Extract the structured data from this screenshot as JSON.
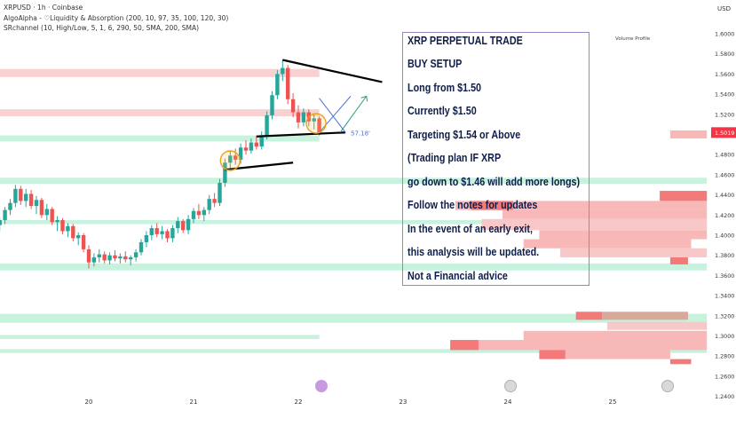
{
  "header": {
    "symbol_line": "XRPUSD · 1h · Coinbase",
    "indicator_1": "AlgoAlpha - ♡Liquidity & Absorption (200, 10, 97, 35, 100, 120, 30)",
    "indicator_2": "SRchannel (10, High/Low, 5, 1, 6, 290, 50, SMA, 200, SMA)",
    "currency": "USD",
    "volume_profile_label": "Volume Profile"
  },
  "note": {
    "lines": [
      "XRP PERPETUAL TRADE",
      "BUY SETUP",
      "Long from $1.50",
      "Currently $1.50",
      "Targeting $1.54 or Above",
      "(Trading plan IF XRP",
      "go down to $1.46 will add more longs)",
      "Follow the notes for updates",
      "In the event of an early exit,",
      "this analysis will be updated.",
      "Not a Financial advice"
    ]
  },
  "chart_data": {
    "type": "candlestick",
    "symbol": "XRPUSD",
    "timeframe": "1h",
    "exchange": "Coinbase",
    "x_tick_labels": [
      "20",
      "21",
      "22",
      "23",
      "24",
      "25"
    ],
    "y_tick_labels": [
      "1.6000",
      "1.5800",
      "1.5600",
      "1.5400",
      "1.5200",
      "1.5000",
      "1.4800",
      "1.4600",
      "1.4400",
      "1.4200",
      "1.4000",
      "1.3800",
      "1.3600",
      "1.3400",
      "1.3200",
      "1.3000",
      "1.2800",
      "1.2600",
      "1.2400"
    ],
    "ylim": [
      1.234,
      1.632
    ],
    "last_price": "1.5019",
    "annotation_label": "57.18'",
    "colors": {
      "up": "#26a69a",
      "down": "#ef5350",
      "last_price": "#f23645",
      "trendline": "#000000",
      "zone_red": "#f8c9c9",
      "zone_green": "#bdf0d8",
      "note_border": "#9a86c4"
    },
    "candles": [
      {
        "day": 19.05,
        "o": 1.413,
        "h": 1.421,
        "l": 1.405,
        "c": 1.417
      },
      {
        "day": 19.1,
        "o": 1.417,
        "h": 1.422,
        "l": 1.408,
        "c": 1.41
      },
      {
        "day": 19.15,
        "o": 1.41,
        "h": 1.418,
        "l": 1.404,
        "c": 1.415
      },
      {
        "day": 19.2,
        "o": 1.415,
        "h": 1.428,
        "l": 1.411,
        "c": 1.425
      },
      {
        "day": 19.25,
        "o": 1.425,
        "h": 1.436,
        "l": 1.42,
        "c": 1.432
      },
      {
        "day": 19.3,
        "o": 1.432,
        "h": 1.45,
        "l": 1.428,
        "c": 1.446
      },
      {
        "day": 19.35,
        "o": 1.446,
        "h": 1.449,
        "l": 1.43,
        "c": 1.434
      },
      {
        "day": 19.4,
        "o": 1.434,
        "h": 1.446,
        "l": 1.428,
        "c": 1.441
      },
      {
        "day": 19.45,
        "o": 1.441,
        "h": 1.445,
        "l": 1.426,
        "c": 1.429
      },
      {
        "day": 19.5,
        "o": 1.429,
        "h": 1.439,
        "l": 1.421,
        "c": 1.435
      },
      {
        "day": 19.55,
        "o": 1.435,
        "h": 1.437,
        "l": 1.417,
        "c": 1.42
      },
      {
        "day": 19.6,
        "o": 1.42,
        "h": 1.431,
        "l": 1.415,
        "c": 1.426
      },
      {
        "day": 19.65,
        "o": 1.426,
        "h": 1.428,
        "l": 1.41,
        "c": 1.413
      },
      {
        "day": 19.7,
        "o": 1.413,
        "h": 1.419,
        "l": 1.404,
        "c": 1.415
      },
      {
        "day": 19.75,
        "o": 1.415,
        "h": 1.417,
        "l": 1.401,
        "c": 1.404
      },
      {
        "day": 19.8,
        "o": 1.404,
        "h": 1.412,
        "l": 1.398,
        "c": 1.409
      },
      {
        "day": 19.85,
        "o": 1.409,
        "h": 1.411,
        "l": 1.394,
        "c": 1.397
      },
      {
        "day": 19.9,
        "o": 1.397,
        "h": 1.403,
        "l": 1.39,
        "c": 1.4
      },
      {
        "day": 19.95,
        "o": 1.4,
        "h": 1.402,
        "l": 1.383,
        "c": 1.386
      },
      {
        "day": 20.0,
        "o": 1.386,
        "h": 1.39,
        "l": 1.367,
        "c": 1.373
      },
      {
        "day": 20.05,
        "o": 1.373,
        "h": 1.382,
        "l": 1.369,
        "c": 1.378
      },
      {
        "day": 20.1,
        "o": 1.378,
        "h": 1.386,
        "l": 1.373,
        "c": 1.381
      },
      {
        "day": 20.15,
        "o": 1.381,
        "h": 1.384,
        "l": 1.372,
        "c": 1.375
      },
      {
        "day": 20.2,
        "o": 1.375,
        "h": 1.383,
        "l": 1.371,
        "c": 1.38
      },
      {
        "day": 20.25,
        "o": 1.38,
        "h": 1.385,
        "l": 1.374,
        "c": 1.377
      },
      {
        "day": 20.3,
        "o": 1.377,
        "h": 1.382,
        "l": 1.372,
        "c": 1.379
      },
      {
        "day": 20.35,
        "o": 1.379,
        "h": 1.384,
        "l": 1.373,
        "c": 1.376
      },
      {
        "day": 20.4,
        "o": 1.376,
        "h": 1.38,
        "l": 1.37,
        "c": 1.378
      },
      {
        "day": 20.45,
        "o": 1.378,
        "h": 1.386,
        "l": 1.374,
        "c": 1.383
      },
      {
        "day": 20.5,
        "o": 1.383,
        "h": 1.396,
        "l": 1.38,
        "c": 1.393
      },
      {
        "day": 20.55,
        "o": 1.393,
        "h": 1.404,
        "l": 1.388,
        "c": 1.4
      },
      {
        "day": 20.6,
        "o": 1.4,
        "h": 1.41,
        "l": 1.395,
        "c": 1.407
      },
      {
        "day": 20.65,
        "o": 1.407,
        "h": 1.412,
        "l": 1.398,
        "c": 1.401
      },
      {
        "day": 20.7,
        "o": 1.401,
        "h": 1.409,
        "l": 1.396,
        "c": 1.404
      },
      {
        "day": 20.75,
        "o": 1.404,
        "h": 1.406,
        "l": 1.393,
        "c": 1.397
      },
      {
        "day": 20.8,
        "o": 1.397,
        "h": 1.41,
        "l": 1.393,
        "c": 1.407
      },
      {
        "day": 20.85,
        "o": 1.407,
        "h": 1.418,
        "l": 1.402,
        "c": 1.414
      },
      {
        "day": 20.9,
        "o": 1.414,
        "h": 1.416,
        "l": 1.402,
        "c": 1.405
      },
      {
        "day": 20.95,
        "o": 1.405,
        "h": 1.42,
        "l": 1.401,
        "c": 1.416
      },
      {
        "day": 21.0,
        "o": 1.416,
        "h": 1.427,
        "l": 1.412,
        "c": 1.424
      },
      {
        "day": 21.05,
        "o": 1.424,
        "h": 1.431,
        "l": 1.416,
        "c": 1.42
      },
      {
        "day": 21.1,
        "o": 1.42,
        "h": 1.428,
        "l": 1.414,
        "c": 1.425
      },
      {
        "day": 21.15,
        "o": 1.425,
        "h": 1.44,
        "l": 1.421,
        "c": 1.436
      },
      {
        "day": 21.2,
        "o": 1.436,
        "h": 1.442,
        "l": 1.428,
        "c": 1.432
      },
      {
        "day": 21.25,
        "o": 1.432,
        "h": 1.456,
        "l": 1.429,
        "c": 1.452
      },
      {
        "day": 21.3,
        "o": 1.452,
        "h": 1.476,
        "l": 1.448,
        "c": 1.472
      },
      {
        "day": 21.35,
        "o": 1.472,
        "h": 1.484,
        "l": 1.465,
        "c": 1.479
      },
      {
        "day": 21.4,
        "o": 1.479,
        "h": 1.486,
        "l": 1.47,
        "c": 1.475
      },
      {
        "day": 21.45,
        "o": 1.475,
        "h": 1.491,
        "l": 1.471,
        "c": 1.487
      },
      {
        "day": 21.5,
        "o": 1.487,
        "h": 1.494,
        "l": 1.48,
        "c": 1.484
      },
      {
        "day": 21.55,
        "o": 1.484,
        "h": 1.496,
        "l": 1.481,
        "c": 1.492
      },
      {
        "day": 21.6,
        "o": 1.492,
        "h": 1.498,
        "l": 1.485,
        "c": 1.488
      },
      {
        "day": 21.65,
        "o": 1.488,
        "h": 1.503,
        "l": 1.485,
        "c": 1.499
      },
      {
        "day": 21.7,
        "o": 1.499,
        "h": 1.523,
        "l": 1.495,
        "c": 1.519
      },
      {
        "day": 21.75,
        "o": 1.519,
        "h": 1.543,
        "l": 1.515,
        "c": 1.539
      },
      {
        "day": 21.8,
        "o": 1.539,
        "h": 1.564,
        "l": 1.535,
        "c": 1.56
      },
      {
        "day": 21.85,
        "o": 1.56,
        "h": 1.574,
        "l": 1.553,
        "c": 1.566
      },
      {
        "day": 21.9,
        "o": 1.566,
        "h": 1.569,
        "l": 1.53,
        "c": 1.535
      },
      {
        "day": 21.95,
        "o": 1.535,
        "h": 1.541,
        "l": 1.517,
        "c": 1.522
      },
      {
        "day": 22.0,
        "o": 1.522,
        "h": 1.529,
        "l": 1.506,
        "c": 1.512
      },
      {
        "day": 22.05,
        "o": 1.512,
        "h": 1.526,
        "l": 1.508,
        "c": 1.522
      },
      {
        "day": 22.1,
        "o": 1.522,
        "h": 1.525,
        "l": 1.508,
        "c": 1.513
      },
      {
        "day": 22.15,
        "o": 1.513,
        "h": 1.52,
        "l": 1.505,
        "c": 1.516
      },
      {
        "day": 22.2,
        "o": 1.516,
        "h": 1.518,
        "l": 1.499,
        "c": 1.502
      }
    ],
    "zones": [
      {
        "kind": "red",
        "low": 1.557,
        "high": 1.565,
        "x_end_day": 22.2
      },
      {
        "kind": "red",
        "low": 1.518,
        "high": 1.525,
        "x_end_day": 22.2
      },
      {
        "kind": "green",
        "low": 1.493,
        "high": 1.499,
        "x_end_day": 22.2
      },
      {
        "kind": "green",
        "low": 1.451,
        "high": 1.457,
        "x_end_day": 25.9
      },
      {
        "kind": "green",
        "low": 1.411,
        "high": 1.415,
        "x_end_day": 25.9
      },
      {
        "kind": "green",
        "low": 1.365,
        "high": 1.372,
        "x_end_day": 25.9
      },
      {
        "kind": "green",
        "low": 1.313,
        "high": 1.322,
        "x_end_day": 25.9
      },
      {
        "kind": "green",
        "low": 1.297,
        "high": 1.301,
        "x_end_day": 22.2
      },
      {
        "kind": "green",
        "low": 1.283,
        "high": 1.287,
        "x_end_day": 25.9
      }
    ],
    "trendlines": [
      {
        "from": [
          21.85,
          1.574
        ],
        "to": [
          22.8,
          1.552
        ]
      },
      {
        "from": [
          21.6,
          1.498
        ],
        "to": [
          22.45,
          1.502
        ]
      },
      {
        "from": [
          21.3,
          1.465
        ],
        "to": [
          21.95,
          1.472
        ]
      }
    ],
    "projection_lines": [
      {
        "color": "#4a6fd6",
        "from": [
          22.2,
          1.502
        ],
        "to": [
          22.5,
          1.538
        ]
      },
      {
        "color": "#4a6fd6",
        "from": [
          22.2,
          1.536
        ],
        "to": [
          22.45,
          1.502
        ]
      },
      {
        "color": "#2c9c7c",
        "from": [
          22.4,
          1.502
        ],
        "to": [
          22.65,
          1.538
        ]
      }
    ],
    "highlight_circles": [
      {
        "day": 21.35,
        "price": 1.474
      },
      {
        "day": 22.17,
        "price": 1.511
      }
    ],
    "volume_profile": [
      {
        "low": 1.496,
        "high": 1.504,
        "from_day": 25.55,
        "to_day": 25.9,
        "color": "#f8b8b8"
      },
      {
        "low": 1.434,
        "high": 1.444,
        "from_day": 25.45,
        "to_day": 25.9,
        "color": "#f47a7a"
      },
      {
        "low": 1.425,
        "high": 1.434,
        "from_day": 23.5,
        "to_day": 25.9,
        "color": "#f8b8b8"
      },
      {
        "low": 1.425,
        "high": 1.434,
        "from_day": 23.65,
        "to_day": 24.05,
        "color": "#f47a7a"
      },
      {
        "low": 1.416,
        "high": 1.425,
        "from_day": 23.95,
        "to_day": 25.9,
        "color": "#f8b8b8"
      },
      {
        "low": 1.405,
        "high": 1.416,
        "from_day": 23.75,
        "to_day": 25.9,
        "color": "#f8c8c8"
      },
      {
        "low": 1.396,
        "high": 1.405,
        "from_day": 24.3,
        "to_day": 25.9,
        "color": "#f8b8b8"
      },
      {
        "low": 1.387,
        "high": 1.396,
        "from_day": 24.15,
        "to_day": 25.75,
        "color": "#f8b8b8"
      },
      {
        "low": 1.378,
        "high": 1.387,
        "from_day": 24.5,
        "to_day": 25.9,
        "color": "#f8c8c8"
      },
      {
        "low": 1.371,
        "high": 1.378,
        "from_day": 25.55,
        "to_day": 25.72,
        "color": "#f47a7a"
      },
      {
        "low": 1.316,
        "high": 1.324,
        "from_day": 24.65,
        "to_day": 24.9,
        "color": "#f47a7a"
      },
      {
        "low": 1.316,
        "high": 1.324,
        "from_day": 24.9,
        "to_day": 25.72,
        "color": "#d8a89a"
      },
      {
        "low": 1.306,
        "high": 1.314,
        "from_day": 24.95,
        "to_day": 25.9,
        "color": "#f8c8c8"
      },
      {
        "low": 1.296,
        "high": 1.305,
        "from_day": 24.15,
        "to_day": 25.9,
        "color": "#f8b8b8"
      },
      {
        "low": 1.286,
        "high": 1.296,
        "from_day": 23.45,
        "to_day": 23.72,
        "color": "#f47a7a"
      },
      {
        "low": 1.286,
        "high": 1.296,
        "from_day": 23.72,
        "to_day": 25.9,
        "color": "#f8b8b8"
      },
      {
        "low": 1.277,
        "high": 1.286,
        "from_day": 24.3,
        "to_day": 24.55,
        "color": "#f47a7a"
      },
      {
        "low": 1.277,
        "high": 1.286,
        "from_day": 24.55,
        "to_day": 25.55,
        "color": "#f8b8b8"
      },
      {
        "low": 1.272,
        "high": 1.277,
        "from_day": 25.55,
        "to_day": 25.75,
        "color": "#f47a7a"
      }
    ]
  }
}
